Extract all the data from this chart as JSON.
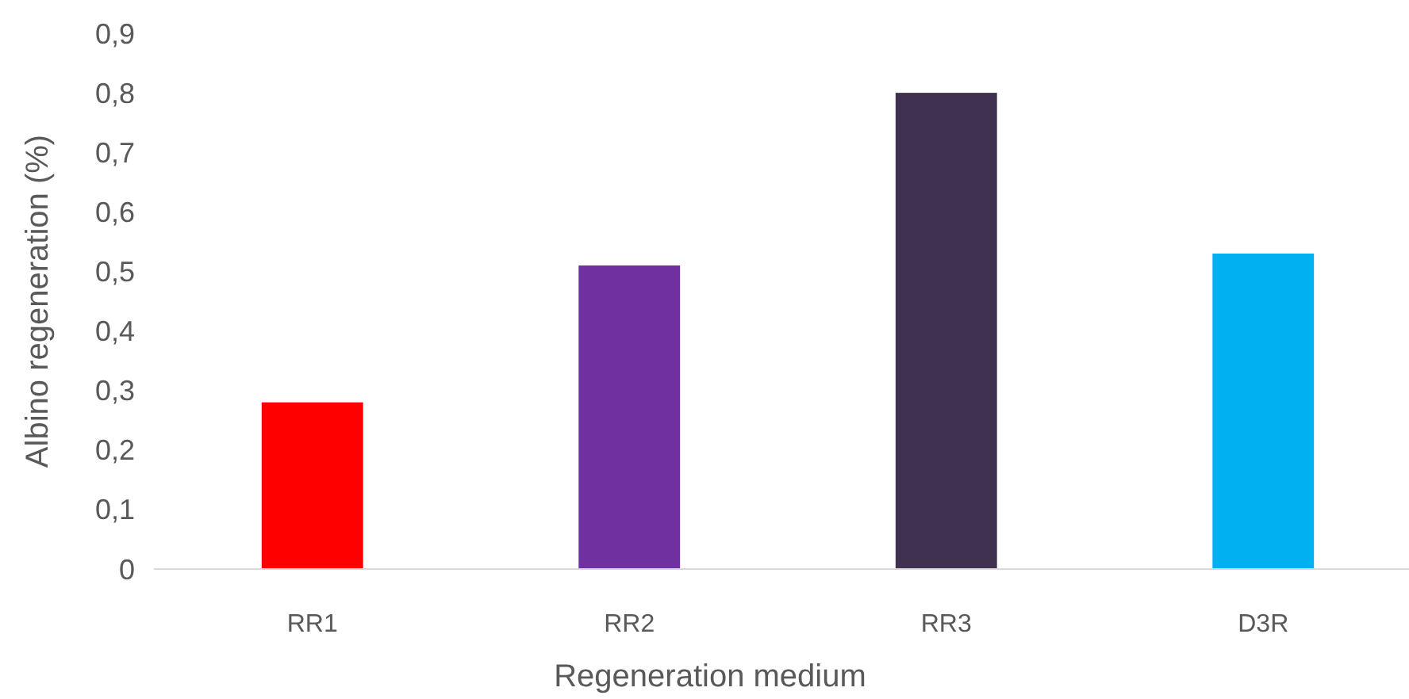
{
  "chart_data": {
    "type": "bar",
    "xlabel": "Regeneration medium",
    "ylabel": "Albino regeneration (%)",
    "categories": [
      "RR1",
      "RR2",
      "RR3",
      "D3R"
    ],
    "values": [
      0.28,
      0.51,
      0.8,
      0.53
    ],
    "colors": [
      "#ff0000",
      "#7030a0",
      "#403151",
      "#00b0f0"
    ],
    "ylim": [
      0,
      0.9
    ],
    "yticks": [
      {
        "value": 0,
        "label": "0"
      },
      {
        "value": 0.1,
        "label": "0,1"
      },
      {
        "value": 0.2,
        "label": "0,2"
      },
      {
        "value": 0.3,
        "label": "0,3"
      },
      {
        "value": 0.4,
        "label": "0,4"
      },
      {
        "value": 0.5,
        "label": "0,5"
      },
      {
        "value": 0.6,
        "label": "0,6"
      },
      {
        "value": 0.7,
        "label": "0,7"
      },
      {
        "value": 0.8,
        "label": "0,8"
      },
      {
        "value": 0.9,
        "label": "0,9"
      }
    ],
    "grid": false
  }
}
